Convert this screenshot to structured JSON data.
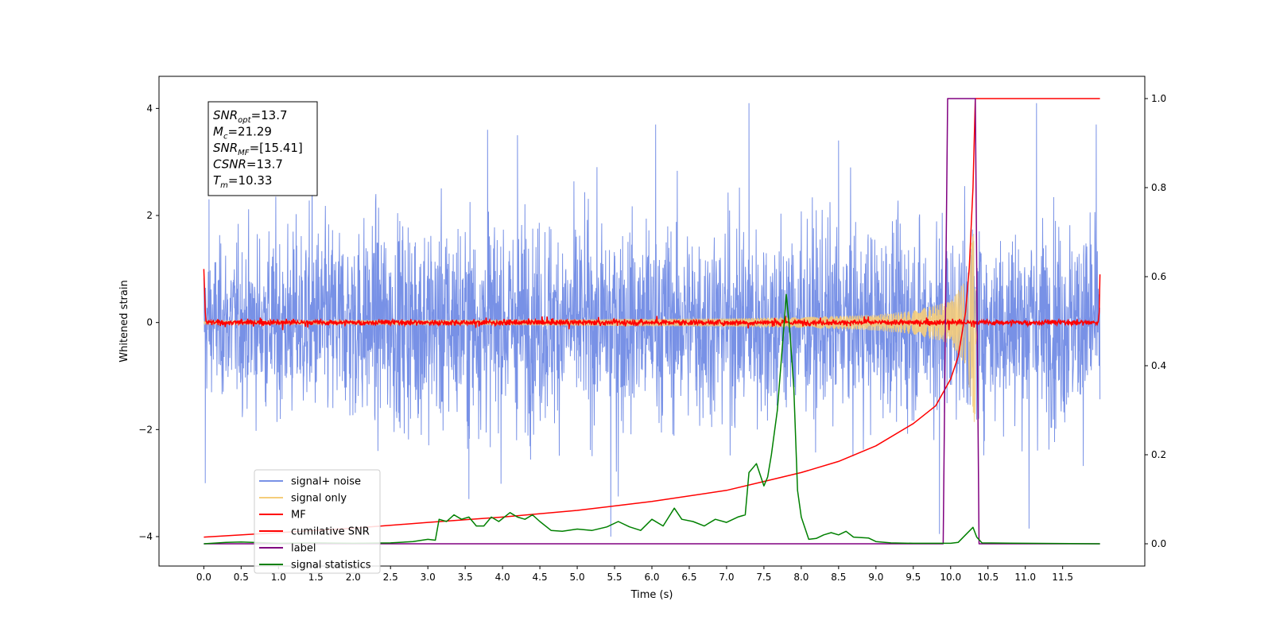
{
  "chart_data": {
    "type": "line",
    "title": "",
    "xlabel": "Time (s)",
    "ylabel_left": "Whitened strain",
    "ylabel_right": "",
    "xlim": [
      -0.6,
      12.6
    ],
    "ylim_left": [
      -4.55,
      4.6
    ],
    "ylim_right": [
      -0.05,
      1.05
    ],
    "x_ticks": [
      0.0,
      0.5,
      1.0,
      1.5,
      2.0,
      2.5,
      3.0,
      3.5,
      4.0,
      4.5,
      5.0,
      5.5,
      6.0,
      6.5,
      7.0,
      7.5,
      8.0,
      8.5,
      9.0,
      9.5,
      10.0,
      10.5,
      11.0,
      11.5
    ],
    "x_tick_labels": [
      "0.0",
      "0.5",
      "1.0",
      "1.5",
      "2.0",
      "2.5",
      "3.0",
      "3.5",
      "4.0",
      "4.5",
      "5.0",
      "5.5",
      "6.0",
      "6.5",
      "7.0",
      "7.5",
      "8.0",
      "8.5",
      "9.0",
      "9.5",
      "10.0",
      "10.5",
      "11.0",
      "11.5"
    ],
    "y_left_ticks": [
      4,
      2,
      0,
      -2,
      -4
    ],
    "y_left_tick_labels": [
      "4",
      "2",
      "0",
      "−2",
      "−4"
    ],
    "y_right_ticks": [
      1.0,
      0.8,
      0.6,
      0.4,
      0.2,
      0.0
    ],
    "y_right_tick_labels": [
      "1.0",
      "0.8",
      "0.6",
      "0.4",
      "0.2",
      "0.0"
    ],
    "grid": false,
    "legend_position": "lower-left",
    "annotation": {
      "lines": [
        {
          "sym": "SNR",
          "sub": "opt",
          "text": "=13.7"
        },
        {
          "sym": "M",
          "sub": "c",
          "text": "=21.29"
        },
        {
          "sym": "SNR",
          "sub": "MF",
          "text": "=[15.41]"
        },
        {
          "sym": "CSNR",
          "sub": "",
          "text": "=13.7"
        },
        {
          "sym": "T",
          "sub": "m",
          "text": "=10.33"
        }
      ]
    },
    "series": [
      {
        "name": "signal+ noise",
        "color": "#7891e6",
        "axis": "left",
        "description": "noisy whitened strain, roughly symmetric about 0",
        "x_range": [
          0.0,
          12.0
        ],
        "envelope_upper": [
          [
            0.0,
            2.1
          ],
          [
            1.0,
            2.9
          ],
          [
            2.0,
            3.1
          ],
          [
            3.0,
            3.3
          ],
          [
            4.0,
            3.2
          ],
          [
            5.0,
            3.1
          ],
          [
            6.0,
            3.1
          ],
          [
            7.0,
            3.2
          ],
          [
            8.0,
            3.1
          ],
          [
            9.0,
            3.0
          ],
          [
            10.0,
            3.0
          ],
          [
            11.0,
            3.1
          ],
          [
            12.0,
            3.2
          ]
        ],
        "peaks": [
          [
            0.07,
            2.3
          ],
          [
            1.45,
            3.5
          ],
          [
            3.8,
            3.6
          ],
          [
            4.2,
            3.5
          ],
          [
            6.05,
            3.7
          ],
          [
            7.3,
            4.1
          ],
          [
            8.5,
            3.4
          ],
          [
            11.15,
            4.1
          ],
          [
            11.95,
            3.7
          ]
        ],
        "troughs": [
          [
            0.02,
            -3.0
          ],
          [
            3.55,
            -3.3
          ],
          [
            5.45,
            -4.0
          ],
          [
            5.55,
            -3.25
          ],
          [
            9.85,
            -3.95
          ],
          [
            11.05,
            -3.85
          ],
          [
            11.05,
            -3.5
          ]
        ]
      },
      {
        "name": "signal only",
        "color": "#f5cd7a",
        "axis": "left",
        "description": "chirp waveform growing toward merger",
        "amplitude_envelope": [
          [
            0.0,
            0.03
          ],
          [
            4.0,
            0.05
          ],
          [
            7.0,
            0.08
          ],
          [
            8.0,
            0.1
          ],
          [
            9.0,
            0.15
          ],
          [
            9.5,
            0.22
          ],
          [
            10.0,
            0.4
          ],
          [
            10.2,
            0.8
          ],
          [
            10.28,
            1.5
          ],
          [
            10.33,
            2.0
          ],
          [
            10.36,
            0.0
          ]
        ]
      },
      {
        "name": "MF",
        "color": "#ff0000",
        "axis": "left",
        "description": "matched filter output, noisy band about 0",
        "band": [
          -0.1,
          0.1
        ],
        "edge_start": 1.0,
        "edge_end": 0.9
      },
      {
        "name": "cumilative SNR",
        "color": "#ff0000",
        "axis": "right",
        "points": [
          [
            0.0,
            0.015
          ],
          [
            1.0,
            0.025
          ],
          [
            2.0,
            0.035
          ],
          [
            3.0,
            0.048
          ],
          [
            4.0,
            0.06
          ],
          [
            5.0,
            0.075
          ],
          [
            6.0,
            0.095
          ],
          [
            7.0,
            0.12
          ],
          [
            7.5,
            0.14
          ],
          [
            8.0,
            0.16
          ],
          [
            8.5,
            0.185
          ],
          [
            9.0,
            0.22
          ],
          [
            9.5,
            0.27
          ],
          [
            9.8,
            0.31
          ],
          [
            10.0,
            0.37
          ],
          [
            10.1,
            0.42
          ],
          [
            10.2,
            0.52
          ],
          [
            10.25,
            0.62
          ],
          [
            10.3,
            0.8
          ],
          [
            10.33,
            1.0
          ],
          [
            12.0,
            1.0
          ]
        ]
      },
      {
        "name": "label",
        "color": "#800080",
        "axis": "right",
        "points": [
          [
            0.0,
            0.0
          ],
          [
            9.9,
            0.0
          ],
          [
            9.96,
            1.0
          ],
          [
            10.33,
            1.0
          ],
          [
            10.38,
            0.0
          ],
          [
            12.0,
            0.0
          ]
        ]
      },
      {
        "name": "signal statistics",
        "color": "#008000",
        "axis": "right",
        "points": [
          [
            0.0,
            0.0
          ],
          [
            0.3,
            0.003
          ],
          [
            0.5,
            0.004
          ],
          [
            1.0,
            0.001
          ],
          [
            1.5,
            0.002
          ],
          [
            2.0,
            0.001
          ],
          [
            2.5,
            0.002
          ],
          [
            2.8,
            0.005
          ],
          [
            3.0,
            0.01
          ],
          [
            3.1,
            0.008
          ],
          [
            3.15,
            0.055
          ],
          [
            3.25,
            0.05
          ],
          [
            3.35,
            0.065
          ],
          [
            3.45,
            0.055
          ],
          [
            3.55,
            0.06
          ],
          [
            3.65,
            0.04
          ],
          [
            3.75,
            0.04
          ],
          [
            3.85,
            0.06
          ],
          [
            3.95,
            0.05
          ],
          [
            4.1,
            0.07
          ],
          [
            4.2,
            0.06
          ],
          [
            4.3,
            0.055
          ],
          [
            4.4,
            0.065
          ],
          [
            4.5,
            0.05
          ],
          [
            4.65,
            0.03
          ],
          [
            4.8,
            0.028
          ],
          [
            5.0,
            0.033
          ],
          [
            5.2,
            0.03
          ],
          [
            5.4,
            0.038
          ],
          [
            5.55,
            0.05
          ],
          [
            5.7,
            0.038
          ],
          [
            5.85,
            0.03
          ],
          [
            6.0,
            0.055
          ],
          [
            6.15,
            0.04
          ],
          [
            6.3,
            0.08
          ],
          [
            6.4,
            0.055
          ],
          [
            6.55,
            0.05
          ],
          [
            6.7,
            0.04
          ],
          [
            6.85,
            0.055
          ],
          [
            7.0,
            0.048
          ],
          [
            7.15,
            0.06
          ],
          [
            7.25,
            0.065
          ],
          [
            7.3,
            0.16
          ],
          [
            7.4,
            0.18
          ],
          [
            7.5,
            0.13
          ],
          [
            7.55,
            0.15
          ],
          [
            7.6,
            0.2
          ],
          [
            7.68,
            0.3
          ],
          [
            7.75,
            0.45
          ],
          [
            7.8,
            0.56
          ],
          [
            7.85,
            0.47
          ],
          [
            7.9,
            0.35
          ],
          [
            7.95,
            0.12
          ],
          [
            8.0,
            0.06
          ],
          [
            8.1,
            0.01
          ],
          [
            8.2,
            0.012
          ],
          [
            8.3,
            0.02
          ],
          [
            8.4,
            0.025
          ],
          [
            8.5,
            0.02
          ],
          [
            8.6,
            0.028
          ],
          [
            8.7,
            0.015
          ],
          [
            8.9,
            0.013
          ],
          [
            9.0,
            0.005
          ],
          [
            9.2,
            0.002
          ],
          [
            9.5,
            0.001
          ],
          [
            10.0,
            0.001
          ],
          [
            10.1,
            0.003
          ],
          [
            10.2,
            0.02
          ],
          [
            10.3,
            0.037
          ],
          [
            10.35,
            0.015
          ],
          [
            10.42,
            0.002
          ],
          [
            11.0,
            0.001
          ],
          [
            12.0,
            0.0
          ]
        ]
      }
    ]
  }
}
